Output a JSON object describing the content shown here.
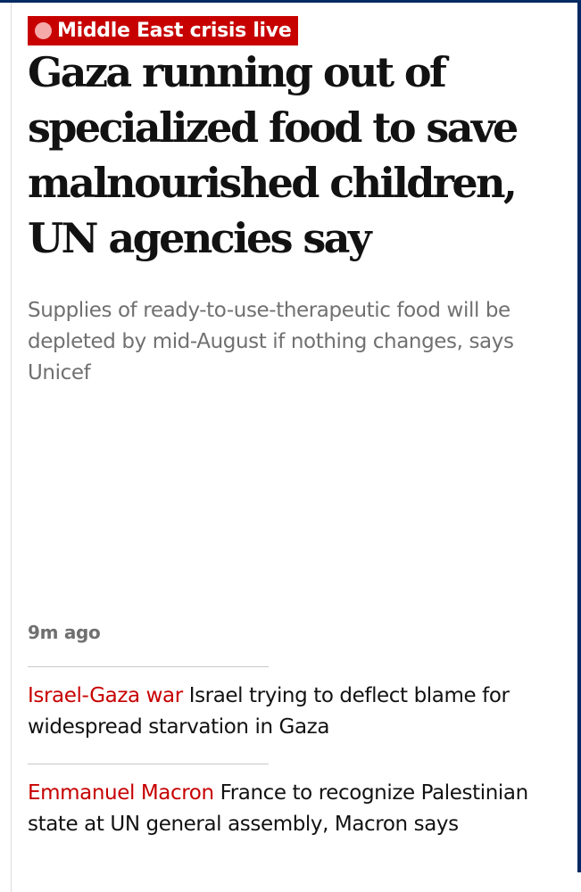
{
  "colors": {
    "brand_dark": "#052962",
    "live_red": "#c70000",
    "live_dot": "#f6a9a9",
    "text_primary": "#121212",
    "text_secondary": "#707070"
  },
  "badge": {
    "label": "Middle East crisis live",
    "icon": "live-dot-icon"
  },
  "article": {
    "headline": "Gaza running out of specialized food to save malnourished children, UN agencies say",
    "standfirst": "Supplies of ready-to-use-therapeutic food will be depleted by mid-August if nothing changes, says Unicef",
    "timestamp": "9m ago"
  },
  "related": [
    {
      "kicker": "Israel-Gaza war",
      "headline": "Israel trying to deflect blame for widespread starvation in Gaza"
    },
    {
      "kicker": "Emmanuel Macron",
      "headline": "France to recognize Palestinian state at UN general assembly, Macron says"
    }
  ]
}
